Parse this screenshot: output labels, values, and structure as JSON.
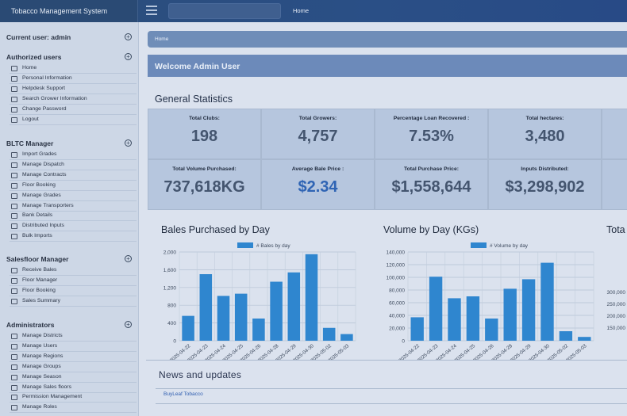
{
  "app": {
    "title": "Tobacco Management System",
    "top_nav_home": "Home"
  },
  "sidebar": {
    "current_user_label": "Current user:",
    "current_user": "admin",
    "sections": [
      {
        "title": "Authorized users",
        "items": [
          {
            "label": "Home",
            "icon": "home-icon"
          },
          {
            "label": "Personal Information",
            "icon": "user-icon"
          },
          {
            "label": "Helpdesk Support",
            "icon": "help-icon"
          },
          {
            "label": "Search Grower Information",
            "icon": "search-icon"
          },
          {
            "label": "Change Password",
            "icon": "lock-icon"
          },
          {
            "label": "Logout",
            "icon": "lock-icon"
          }
        ]
      },
      {
        "title": "BLTC Manager",
        "items": [
          {
            "label": "Import Grades",
            "icon": "import-icon"
          },
          {
            "label": "Manage Dispatch",
            "icon": "truck-icon"
          },
          {
            "label": "Manage Contracts",
            "icon": "contract-icon"
          },
          {
            "label": "Floor Booking",
            "icon": "calendar-icon"
          },
          {
            "label": "Manage Grades",
            "icon": "grade-icon"
          },
          {
            "label": "Manage Transporters",
            "icon": "truck-icon"
          },
          {
            "label": "Bank Details",
            "icon": "bank-icon"
          },
          {
            "label": "Distributed Inputs",
            "icon": "list-icon"
          },
          {
            "label": "Bulk Imports",
            "icon": "file-icon"
          }
        ]
      },
      {
        "title": "Salesfloor Manager",
        "items": [
          {
            "label": "Receive Bales",
            "icon": "list-icon"
          },
          {
            "label": "Floor Manager",
            "icon": "trophy-icon"
          },
          {
            "label": "Floor Booking",
            "icon": "calendar-icon"
          },
          {
            "label": "Sales Summary",
            "icon": "list-icon"
          }
        ]
      },
      {
        "title": "Administrators",
        "items": [
          {
            "label": "Manage Districts",
            "icon": "users-icon"
          },
          {
            "label": "Manage Users",
            "icon": "users-icon"
          },
          {
            "label": "Manage Regions",
            "icon": "users-icon"
          },
          {
            "label": "Manage Groups",
            "icon": "users-icon"
          },
          {
            "label": "Manage Season",
            "icon": "users-icon"
          },
          {
            "label": "Manage Sales floors",
            "icon": "users-icon"
          },
          {
            "label": "Permission Management",
            "icon": "users-icon"
          },
          {
            "label": "Manage Roles",
            "icon": "users-icon"
          }
        ]
      }
    ]
  },
  "breadcrumb": "Home",
  "welcome": "Welcome Admin User",
  "general_statistics": {
    "title": "General Statistics",
    "stats": [
      {
        "label": "Total Clubs:",
        "value": "198"
      },
      {
        "label": "Total Growers:",
        "value": "4,757"
      },
      {
        "label": "Percentage Loan Recovered :",
        "value": "7.53%"
      },
      {
        "label": "Total hectares:",
        "value": "3,480"
      },
      {
        "label": "Total Volume Purchased:",
        "value": "737,618KG"
      },
      {
        "label": "Average Bale Price :",
        "value": "$2.34"
      },
      {
        "label": "Total Purchase Price:",
        "value": "$1,558,644"
      },
      {
        "label": "Inputs Distributed:",
        "value": "$3,298,902"
      }
    ]
  },
  "chart_data": [
    {
      "type": "bar",
      "title": "Bales Purchased by Day",
      "categories": [
        "2025-04-22",
        "2025-04-23",
        "2025-04-24",
        "2025-04-25",
        "2025-04-26",
        "2025-04-28",
        "2025-04-29",
        "2025-04-30",
        "2025-05-02",
        "2025-05-03"
      ],
      "series": [
        {
          "name": "# Bales by day",
          "values": [
            560,
            1500,
            1010,
            1060,
            500,
            1330,
            1540,
            1950,
            290,
            150
          ]
        }
      ],
      "ylim": [
        0,
        2000
      ],
      "yticks": [
        "0",
        "400",
        "800",
        "1,200",
        "1,600",
        "2,000"
      ],
      "color": "#2f86cf",
      "legend": "top-center",
      "grid": true
    },
    {
      "type": "bar",
      "title": "Volume by Day (KGs)",
      "categories": [
        "2025-04-22",
        "2025-04-23",
        "2025-04-24",
        "2025-04-25",
        "2025-04-26",
        "2025-04-28",
        "2025-04-29",
        "2025-04-30",
        "2025-05-02",
        "2025-05-03"
      ],
      "series": [
        {
          "name": "# Volume by day",
          "values": [
            37000,
            101000,
            67000,
            70000,
            35000,
            82000,
            97000,
            123000,
            15000,
            6000
          ]
        }
      ],
      "ylim": [
        0,
        140000
      ],
      "yticks": [
        "0",
        "20,000",
        "40,000",
        "60,000",
        "80,000",
        "100,000",
        "120,000",
        "140,000"
      ],
      "color": "#2f86cf",
      "legend": "top-center",
      "grid": true
    },
    {
      "type": "bar",
      "title": "Tota",
      "yticks": [
        "150,000",
        "200,000",
        "250,000",
        "300,000"
      ]
    }
  ],
  "news": {
    "title": "News and updates",
    "items": [
      "BuyLeaf Tobacco"
    ]
  }
}
